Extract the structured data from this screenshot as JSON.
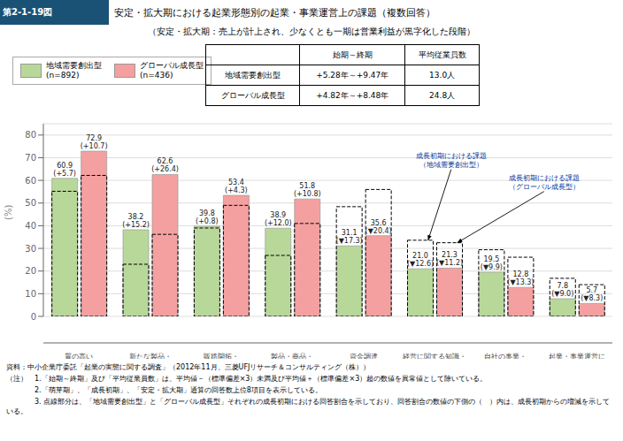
{
  "chart_data": {
    "type": "bar",
    "figure_label": "第2-1-19図",
    "title": "安定・拡大期における起業形態別の起業・事業運営上の課題（複数回答）",
    "subtitle": "（安定・拡大期：売上が計上され、少なくとも一期は営業利益が黒字化した段階）",
    "y_label": "(%)",
    "categories": [
      "質の高い\n人材の確保",
      "新たな製品・\n商品・サービスの\n開発",
      "販路開拓・\nマーケティング",
      "製品・商品・\nサービスの\n高付加価値化",
      "資金調達",
      "経営に関する知識・\nノウハウの習得",
      "自社の事業・\n業界に関する知識・\nノウハウの習得",
      "起業・事業運営に\n伴う各種手続"
    ],
    "series": [
      {
        "name": "地域需要創出型\n(n=892)",
        "color": "#b8d89a",
        "values": [
          60.9,
          38.2,
          39.8,
          38.9,
          31.1,
          21.0,
          19.5,
          7.8
        ],
        "value_labels": [
          "60.9\n(+5.7)",
          "38.2\n(+15.2)",
          "39.8\n(+0.8)",
          "38.9\n(+12.0)",
          "31.1\n(▼17.3)",
          "21.0\n(▼12.6)",
          "19.5\n(▼9.9)",
          "7.8\n(▼9.0)"
        ],
        "early_values": [
          55.2,
          23.0,
          39.0,
          26.9,
          48.4,
          33.6,
          29.4,
          16.8
        ]
      },
      {
        "name": "グローバル成長型\n(n=436)",
        "color": "#f4a0a0",
        "values": [
          72.9,
          62.6,
          53.4,
          51.8,
          35.6,
          21.3,
          12.8,
          5.7
        ],
        "value_labels": [
          "72.9\n(+10.7)",
          "62.6\n(+26.4)",
          "53.4\n(+4.3)",
          "51.8\n(+10.8)",
          "35.6\n(▼20.4)",
          "21.3\n(▼11.2)",
          "12.8\n(▼13.3)",
          "5.7\n(▼8.3)"
        ],
        "early_values": [
          62.2,
          36.2,
          49.0,
          41.0,
          56.0,
          32.5,
          26.1,
          14.0
        ]
      }
    ],
    "ylim": [
      0,
      85
    ],
    "yticks": [
      0,
      10,
      20,
      30,
      40,
      50,
      60,
      70,
      80
    ],
    "grid": true,
    "data_labels": true,
    "annotations": [
      {
        "text": "成長初期における課題\n（地域需要創出型）",
        "category": "経営に関する知識・\nノウハウの習得",
        "series": "地域需要創出型\n(n=892)"
      },
      {
        "text": "成長初期における課題\n（グローバル成長型）",
        "category": "経営に関する知識・\nノウハウの習得",
        "series": "グローバル成長型\n(n=436)"
      }
    ],
    "table": {
      "columns": [
        "始期～終期",
        "平均従業員数"
      ],
      "rows": [
        [
          "地域需要創出型",
          "+5.28年～+9.47年",
          "13.0人"
        ],
        [
          "グローバル成長型",
          "+4.82年～+8.48年",
          "24.8人"
        ]
      ]
    },
    "source": "資料：中小企業庁委託「起業の実態に関する調査」（2012年11月、三菱UFJリサーチ＆コンサルティング（株））",
    "notes": [
      "（注）　1.「始期～終期」及び「平均従業員数」は、平均値－（標準偏差×3）未満及び平均値＋（標準偏差×3）超の数値を異常値として除いている。",
      "　　　　2.「萌芽期」、「成長初期」、「安定・拡大期」通算の回答数上位8項目を表示している。",
      "　　　　3. 点線部分は、「地域需要創出型」と「グローバル成長型」それぞれの成長初期における回答割合を示しており、回答割合の数値の下側の（　）内は、成長初期からの増減を示している。"
    ]
  }
}
